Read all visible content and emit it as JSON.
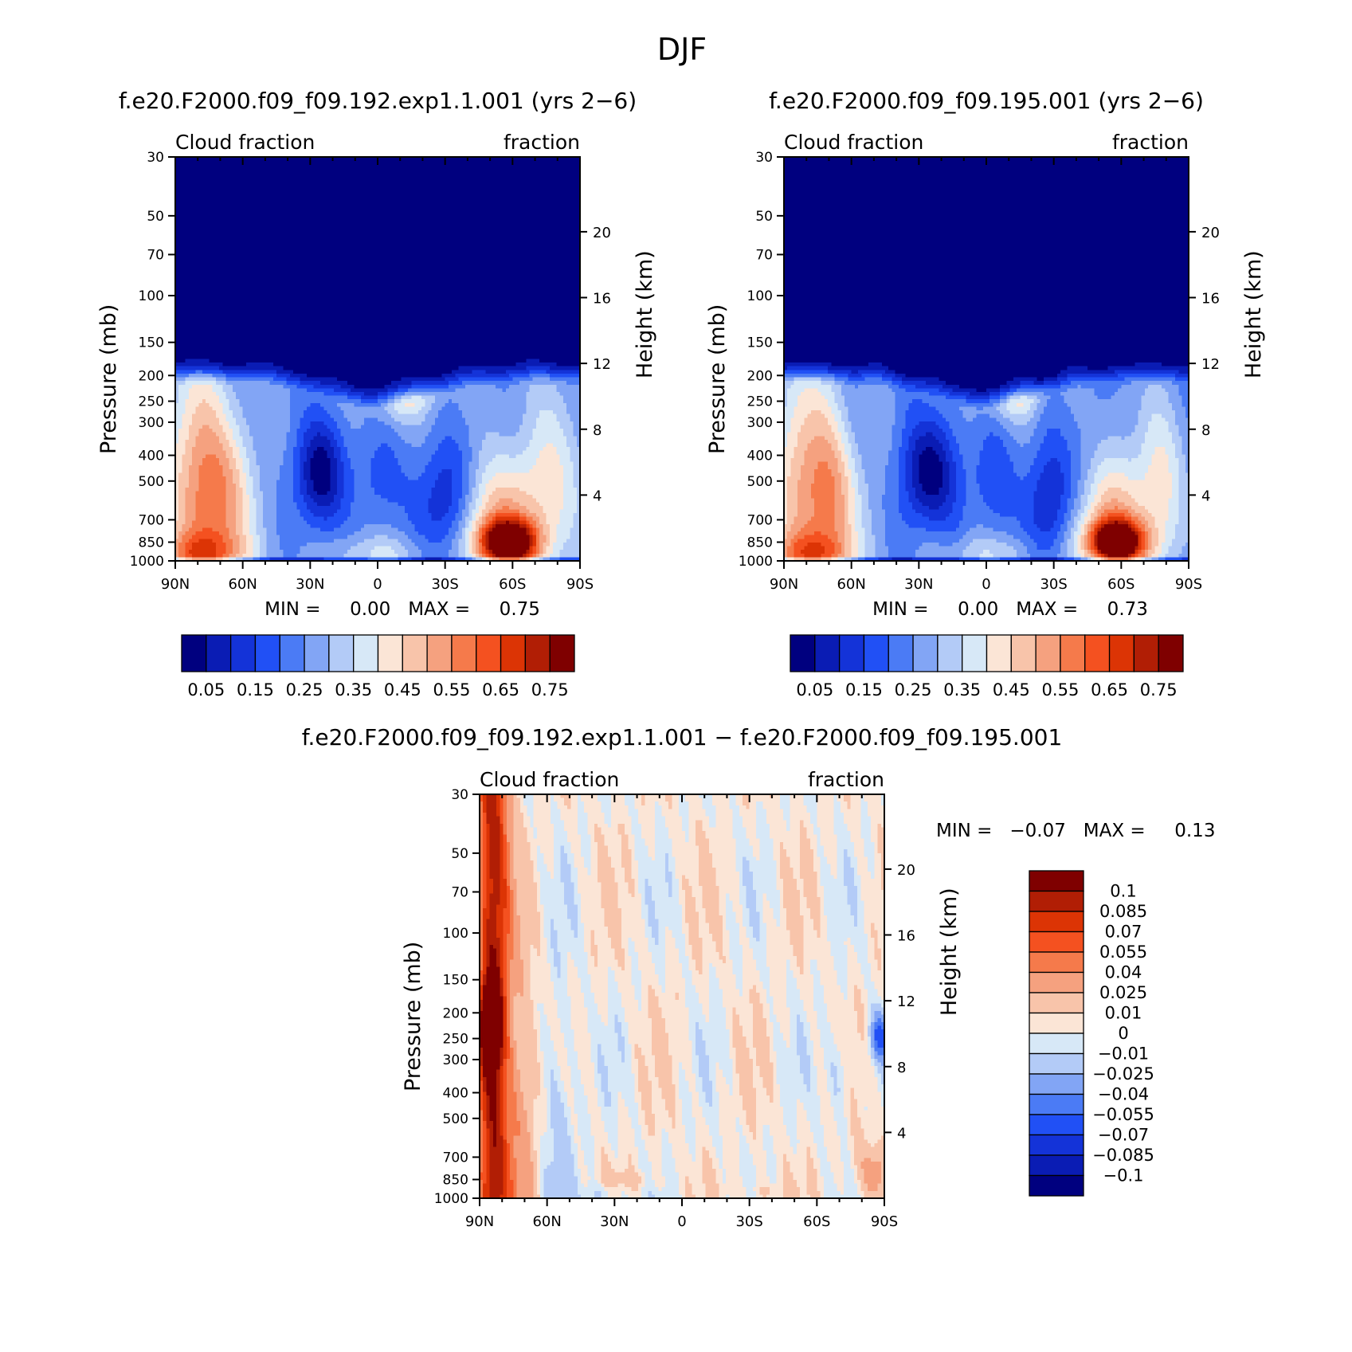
{
  "page_title": "DJF",
  "chart_data": [
    {
      "type": "heatmap",
      "title": "f.e20.F2000.f09_f09.192.exp1.1.001 (yrs 2-6)",
      "left_string": "Cloud fraction",
      "right_string": "fraction",
      "ylabel": "Pressure (mb)",
      "ylabel_right": "Height (km)",
      "x_ticks": [
        "90N",
        "60N",
        "30N",
        "0",
        "30S",
        "60S",
        "90S"
      ],
      "x_values": [
        90,
        60,
        30,
        0,
        -30,
        -60,
        -90
      ],
      "y_ticks": [
        30,
        50,
        70,
        100,
        150,
        200,
        250,
        300,
        400,
        500,
        700,
        850,
        1000
      ],
      "y_ticks_right": [
        20,
        16,
        12,
        8,
        4
      ],
      "ylim": [
        30,
        1000
      ],
      "y_scale": "log",
      "min_max_text": "MIN =     0.00   MAX =     0.75",
      "min": 0.0,
      "max": 0.75,
      "colorbar": {
        "orientation": "horizontal",
        "levels": [
          0.05,
          0.1,
          0.15,
          0.2,
          0.25,
          0.3,
          0.35,
          0.4,
          0.45,
          0.5,
          0.55,
          0.6,
          0.65,
          0.7,
          0.75
        ],
        "labels": [
          "0.05",
          "0.15",
          "0.25",
          "0.35",
          "0.45",
          "0.55",
          "0.65",
          "0.75"
        ],
        "colors": [
          "#00007f",
          "#0a1cb4",
          "#1433d8",
          "#2150f5",
          "#4b7bf5",
          "#82a5f5",
          "#b3cbf7",
          "#d7e8f7",
          "#fbe5d6",
          "#f8c4aa",
          "#f5a17f",
          "#f57a4b",
          "#f45120",
          "#dc3405",
          "#b11e05",
          "#7f0000"
        ]
      }
    },
    {
      "type": "heatmap",
      "title": "f.e20.F2000.f09_f09.195.001 (yrs 2-6)",
      "left_string": "Cloud fraction",
      "right_string": "fraction",
      "ylabel": "Pressure (mb)",
      "ylabel_right": "Height (km)",
      "x_ticks": [
        "90N",
        "60N",
        "30N",
        "0",
        "30S",
        "60S",
        "90S"
      ],
      "x_values": [
        90,
        60,
        30,
        0,
        -30,
        -60,
        -90
      ],
      "y_ticks": [
        30,
        50,
        70,
        100,
        150,
        200,
        250,
        300,
        400,
        500,
        700,
        850,
        1000
      ],
      "y_ticks_right": [
        20,
        16,
        12,
        8,
        4
      ],
      "ylim": [
        30,
        1000
      ],
      "y_scale": "log",
      "min_max_text": "MIN =     0.00   MAX =     0.73",
      "min": 0.0,
      "max": 0.73,
      "colorbar": {
        "orientation": "horizontal",
        "levels": [
          0.05,
          0.1,
          0.15,
          0.2,
          0.25,
          0.3,
          0.35,
          0.4,
          0.45,
          0.5,
          0.55,
          0.6,
          0.65,
          0.7,
          0.75
        ],
        "labels": [
          "0.05",
          "0.15",
          "0.25",
          "0.35",
          "0.45",
          "0.55",
          "0.65",
          "0.75"
        ],
        "colors": [
          "#00007f",
          "#0a1cb4",
          "#1433d8",
          "#2150f5",
          "#4b7bf5",
          "#82a5f5",
          "#b3cbf7",
          "#d7e8f7",
          "#fbe5d6",
          "#f8c4aa",
          "#f5a17f",
          "#f57a4b",
          "#f45120",
          "#dc3405",
          "#b11e05",
          "#7f0000"
        ]
      }
    },
    {
      "type": "heatmap",
      "title": "f.e20.F2000.f09_f09.192.exp1.1.001 - f.e20.F2000.f09_f09.195.001",
      "left_string": "Cloud fraction",
      "right_string": "fraction",
      "ylabel": "Pressure (mb)",
      "ylabel_right": "Height (km)",
      "x_ticks": [
        "90N",
        "60N",
        "30N",
        "0",
        "30S",
        "60S",
        "90S"
      ],
      "x_values": [
        90,
        60,
        30,
        0,
        -30,
        -60,
        -90
      ],
      "y_ticks": [
        30,
        50,
        70,
        100,
        150,
        200,
        250,
        300,
        400,
        500,
        700,
        850,
        1000
      ],
      "y_ticks_right": [
        20,
        16,
        12,
        8,
        4
      ],
      "ylim": [
        30,
        1000
      ],
      "y_scale": "log",
      "min_max_text": "MIN =   -0.07   MAX =     0.13",
      "min": -0.07,
      "max": 0.13,
      "colorbar": {
        "orientation": "vertical",
        "levels": [
          0.1,
          0.085,
          0.07,
          0.055,
          0.04,
          0.025,
          0.01,
          0,
          -0.01,
          -0.025,
          -0.04,
          -0.055,
          -0.07,
          -0.085,
          -0.1
        ],
        "labels": [
          "0.1",
          "0.085",
          "0.07",
          "0.055",
          "0.04",
          "0.025",
          "0.01",
          "0",
          "-0.01",
          "-0.025",
          "-0.04",
          "-0.055",
          "-0.07",
          "-0.085",
          "-0.1"
        ],
        "colors": [
          "#7f0000",
          "#b11e05",
          "#dc3405",
          "#f45120",
          "#f57a4b",
          "#f5a17f",
          "#f8c4aa",
          "#fbe5d6",
          "#d7e8f7",
          "#b3cbf7",
          "#82a5f5",
          "#4b7bf5",
          "#2150f5",
          "#1433d8",
          "#0a1cb4",
          "#00007f"
        ]
      }
    }
  ]
}
